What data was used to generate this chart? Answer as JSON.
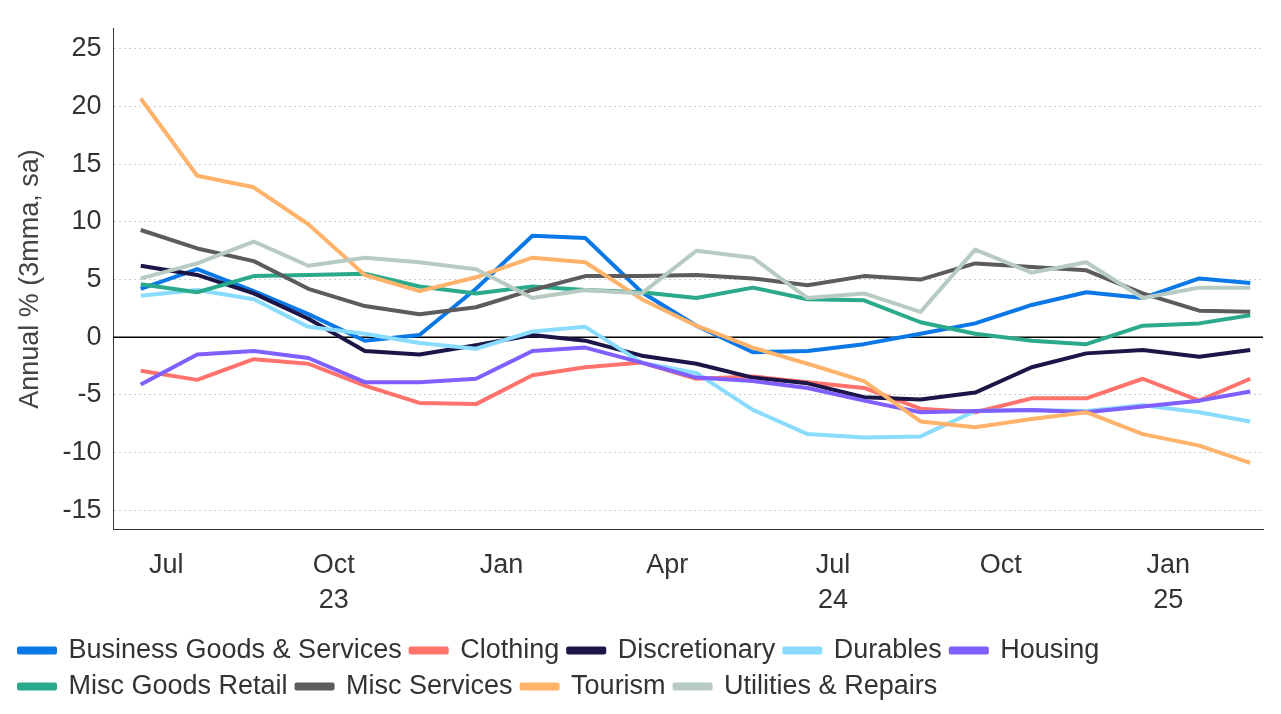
{
  "chart_data": {
    "type": "line",
    "ylabel": "Annual % (3mma, sa)",
    "x": [
      "2023-07-01",
      "2023-08-01",
      "2023-09-01",
      "2023-10-01",
      "2023-11-01",
      "2023-12-01",
      "2024-01-01",
      "2024-02-01",
      "2024-03-01",
      "2024-04-01",
      "2024-05-01",
      "2024-06-01",
      "2024-07-01",
      "2024-08-01",
      "2024-09-01",
      "2024-10-01",
      "2024-11-01",
      "2024-12-01",
      "2025-01-01",
      "2025-02-01",
      "2025-03-01"
    ],
    "xlim": [
      "2023-06-16",
      "2025-03-08"
    ],
    "xticks": [
      {
        "value": "2023-07-15",
        "label": "Jul"
      },
      {
        "value": "2023-10-15",
        "label": "Oct\n23"
      },
      {
        "value": "2024-01-15",
        "label": "Jan"
      },
      {
        "value": "2024-04-15",
        "label": "Apr"
      },
      {
        "value": "2024-07-15",
        "label": "Jul\n24"
      },
      {
        "value": "2024-10-15",
        "label": "Oct"
      },
      {
        "value": "2025-01-15",
        "label": "Jan\n25"
      }
    ],
    "ylim": [
      -16.7,
      26.8
    ],
    "yticks": [
      -15,
      -10,
      -5,
      0,
      5,
      10,
      15,
      20,
      25
    ],
    "grid": "y",
    "legend": "bottom",
    "marker": "none",
    "line_style": "solid",
    "ref_lines": [
      {
        "axis": "y",
        "value": 0,
        "color": "#000000"
      }
    ],
    "series": [
      {
        "name": "Business Goods & Services",
        "color": "#0a78e6",
        "values": [
          4.2,
          5.9,
          4.0,
          2.0,
          -0.3,
          0.2,
          4.2,
          8.8,
          8.6,
          3.9,
          1.0,
          -1.3,
          -1.2,
          -0.6,
          0.3,
          1.2,
          2.8,
          3.9,
          3.4,
          5.1,
          4.7
        ]
      },
      {
        "name": "Clothing",
        "color": "#ff736c",
        "values": [
          -2.9,
          -3.7,
          -1.9,
          -2.3,
          -4.2,
          -5.7,
          -5.8,
          -3.3,
          -2.6,
          -2.2,
          -3.6,
          -3.4,
          -3.9,
          -4.4,
          -6.2,
          -6.5,
          -5.3,
          -5.3,
          -3.6,
          -5.5,
          -3.6
        ]
      },
      {
        "name": "Discretionary",
        "color": "#1c1547",
        "values": [
          6.2,
          5.4,
          3.8,
          1.6,
          -1.2,
          -1.5,
          -0.7,
          0.2,
          -0.3,
          -1.6,
          -2.3,
          -3.5,
          -4.0,
          -5.2,
          -5.4,
          -4.8,
          -2.6,
          -1.4,
          -1.1,
          -1.7,
          -1.1
        ]
      },
      {
        "name": "Durables",
        "color": "#8adcff",
        "values": [
          3.6,
          4.1,
          3.3,
          0.9,
          0.3,
          -0.5,
          -1.0,
          0.5,
          0.9,
          -2.2,
          -3.1,
          -6.3,
          -8.4,
          -8.7,
          -8.6,
          -6.4,
          -6.3,
          -6.4,
          -5.9,
          -6.5,
          -7.3
        ]
      },
      {
        "name": "Housing",
        "color": "#7f5ffe",
        "values": [
          -4.1,
          -1.5,
          -1.2,
          -1.8,
          -3.9,
          -3.9,
          -3.6,
          -1.2,
          -0.9,
          -2.2,
          -3.5,
          -3.8,
          -4.4,
          -5.5,
          -6.5,
          -6.4,
          -6.3,
          -6.5,
          -6.0,
          -5.5,
          -4.7
        ]
      },
      {
        "name": "Misc Goods Retail",
        "color": "#2aaa8a",
        "values": [
          4.6,
          3.9,
          5.3,
          5.4,
          5.5,
          4.4,
          3.8,
          4.4,
          4.1,
          3.9,
          3.4,
          4.3,
          3.3,
          3.2,
          1.3,
          0.3,
          -0.3,
          -0.6,
          1.0,
          1.2,
          1.9
        ]
      },
      {
        "name": "Misc Services",
        "color": "#5c5c5e",
        "values": [
          9.3,
          7.7,
          6.6,
          4.2,
          2.7,
          2.0,
          2.6,
          4.1,
          5.3,
          5.3,
          5.4,
          5.1,
          4.5,
          5.3,
          5.0,
          6.4,
          6.1,
          5.8,
          3.8,
          2.3,
          2.2
        ]
      },
      {
        "name": "Tourism",
        "color": "#ffb26a",
        "values": [
          20.7,
          14.0,
          13.0,
          9.8,
          5.4,
          4.0,
          5.2,
          6.9,
          6.5,
          3.3,
          1.0,
          -0.9,
          -2.3,
          -3.8,
          -7.3,
          -7.8,
          -7.1,
          -6.5,
          -8.4,
          -9.4,
          -10.9
        ]
      },
      {
        "name": "Utilities & Repairs",
        "color": "#b7cbc2",
        "values": [
          5.1,
          6.4,
          8.3,
          6.2,
          6.9,
          6.5,
          5.9,
          3.4,
          4.1,
          3.8,
          7.5,
          6.9,
          3.4,
          3.8,
          2.2,
          7.6,
          5.6,
          6.5,
          3.4,
          4.3,
          4.3
        ]
      }
    ]
  }
}
